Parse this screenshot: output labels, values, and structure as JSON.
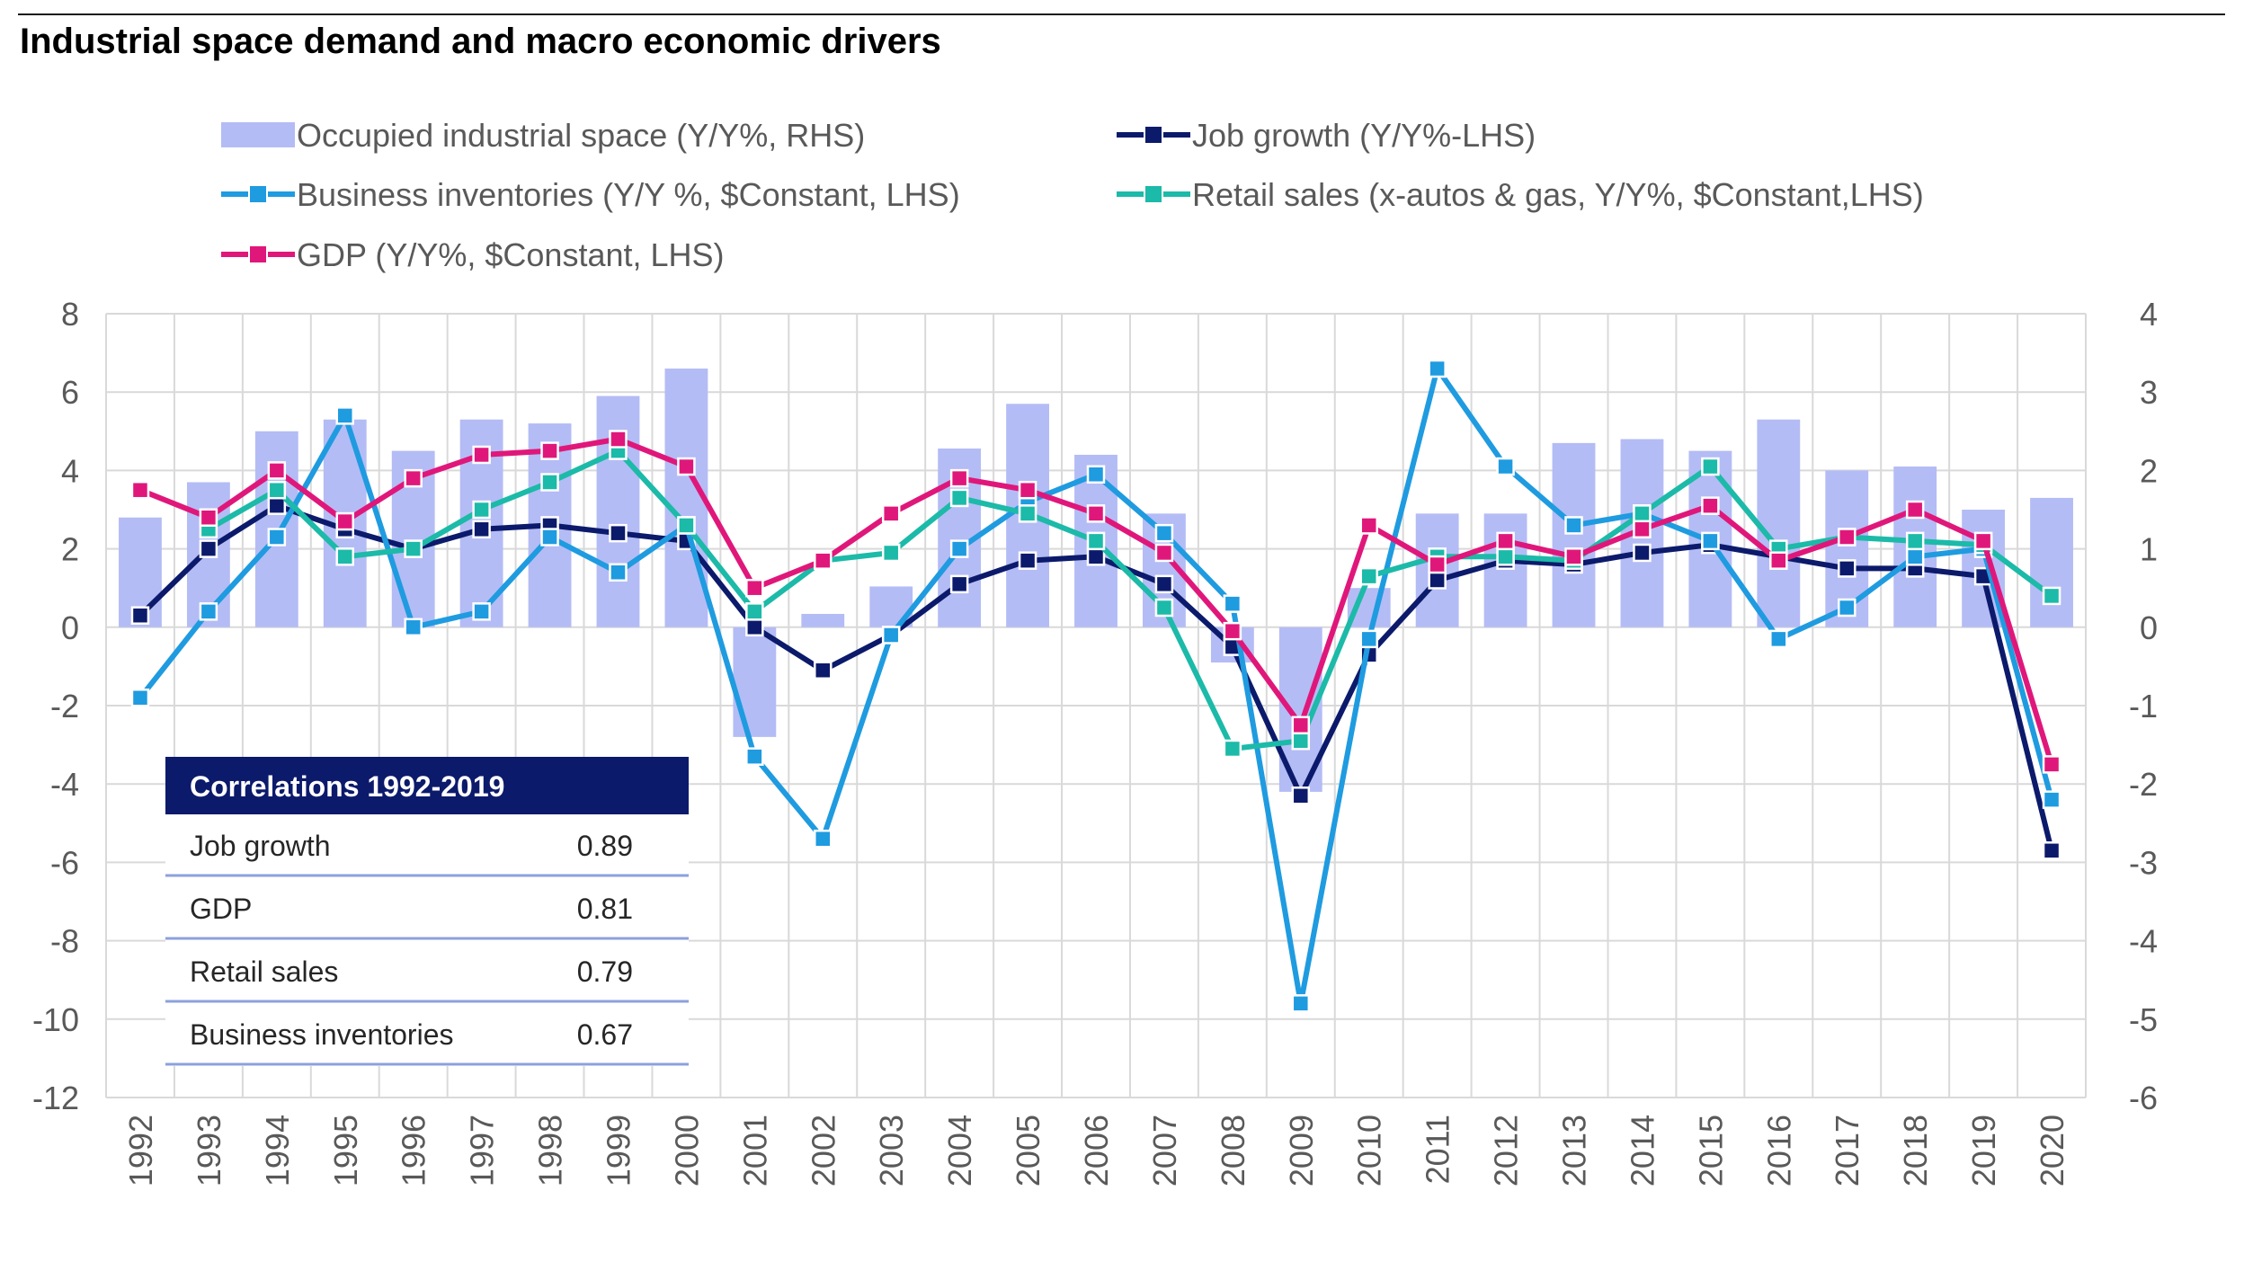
{
  "title": "Industrial space demand and macro economic drivers",
  "chart_data": {
    "type": "bar+line",
    "categories": [
      "1992",
      "1993",
      "1994",
      "1995",
      "1996",
      "1997",
      "1998",
      "1999",
      "2000",
      "2001",
      "2002",
      "2003",
      "2004",
      "2005",
      "2006",
      "2007",
      "2008",
      "2009",
      "2010",
      "2011",
      "2012",
      "2013",
      "2014",
      "2015",
      "2016",
      "2017",
      "2018",
      "2019",
      "2020"
    ],
    "left_axis": {
      "ylim": [
        -12,
        8
      ],
      "ticks": [
        8,
        6,
        4,
        2,
        0,
        -2,
        -4,
        -6,
        -8,
        -10,
        -12
      ]
    },
    "right_axis": {
      "ylim": [
        -6,
        4
      ],
      "ticks": [
        4,
        3,
        2,
        1,
        0,
        -1,
        -2,
        -3,
        -4,
        -5,
        -6
      ]
    },
    "bar_series": {
      "name": "Occupied industrial space (Y/Y%, RHS)",
      "axis": "right",
      "color": "#b4bcf5",
      "values": [
        1.4,
        1.85,
        2.5,
        2.65,
        2.25,
        2.65,
        2.6,
        2.95,
        3.3,
        -1.4,
        0.17,
        0.52,
        2.28,
        2.85,
        2.2,
        1.45,
        -0.45,
        -2.1,
        0.5,
        1.45,
        1.45,
        2.35,
        2.4,
        2.25,
        2.65,
        2.0,
        2.05,
        1.5,
        1.65
      ]
    },
    "series": [
      {
        "name": "Job growth (Y/Y%-LHS)",
        "color": "#0c1a6b",
        "values": [
          0.3,
          2.0,
          3.1,
          2.5,
          2.0,
          2.5,
          2.6,
          2.4,
          2.2,
          0.0,
          -1.1,
          -0.2,
          1.1,
          1.7,
          1.8,
          1.1,
          -0.5,
          -4.3,
          -0.7,
          1.2,
          1.7,
          1.6,
          1.9,
          2.1,
          1.8,
          1.5,
          1.5,
          1.3,
          -5.7
        ]
      },
      {
        "name": "Business inventories (Y/Y %, $Constant, LHS)",
        "color": "#1f9be0",
        "values": [
          -1.8,
          0.4,
          2.3,
          5.4,
          0.0,
          0.4,
          2.3,
          1.4,
          2.6,
          -3.3,
          -5.4,
          -0.2,
          2.0,
          3.2,
          3.9,
          2.4,
          0.6,
          -9.6,
          -0.3,
          6.6,
          4.1,
          2.6,
          2.9,
          2.2,
          -0.3,
          0.5,
          1.8,
          2.0,
          -4.4
        ]
      },
      {
        "name": "Retail sales (x-autos & gas, Y/Y%, $Constant,LHS)",
        "color": "#1cbaa8",
        "values": [
          null,
          2.5,
          3.5,
          1.8,
          2.0,
          3.0,
          3.7,
          4.5,
          2.6,
          0.4,
          1.7,
          1.9,
          3.3,
          2.9,
          2.2,
          0.5,
          -3.1,
          -2.9,
          1.3,
          1.8,
          1.8,
          1.7,
          2.9,
          4.1,
          2.0,
          2.3,
          2.2,
          2.1,
          0.8
        ]
      },
      {
        "name": "GDP (Y/Y%, $Constant, LHS)",
        "color": "#e0177a",
        "values": [
          3.5,
          2.8,
          4.0,
          2.7,
          3.8,
          4.4,
          4.5,
          4.8,
          4.1,
          1.0,
          1.7,
          2.9,
          3.8,
          3.5,
          2.9,
          1.9,
          -0.1,
          -2.5,
          2.6,
          1.6,
          2.2,
          1.8,
          2.5,
          3.1,
          1.7,
          2.3,
          3.0,
          2.2,
          -3.5
        ]
      }
    ],
    "legend": [
      "Occupied industrial space (Y/Y%, RHS)",
      "Job growth (Y/Y%-LHS)",
      "Business inventories (Y/Y %, $Constant, LHS)",
      "Retail sales (x-autos & gas, Y/Y%, $Constant,LHS)",
      "GDP (Y/Y%, $Constant, LHS)"
    ],
    "legend_placement": "top",
    "grid": true,
    "correlations": {
      "header": "Correlations 1992-2019",
      "rows": [
        {
          "label": "Job growth",
          "value": "0.89"
        },
        {
          "label": "GDP",
          "value": "0.81"
        },
        {
          "label": "Retail sales",
          "value": "0.79"
        },
        {
          "label": "Business inventories",
          "value": "0.67"
        }
      ]
    }
  }
}
